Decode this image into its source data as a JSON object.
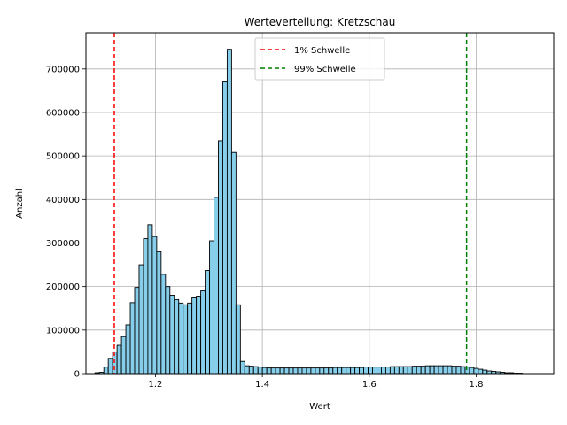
{
  "chart_data": {
    "type": "bar",
    "title": "Werteverteilung: Kretzschau",
    "xlabel": "Wert",
    "ylabel": "Anzahl",
    "xlim": [
      1.07,
      1.945
    ],
    "ylim": [
      0,
      783000
    ],
    "xticks": [
      1.2,
      1.4,
      1.6,
      1.8
    ],
    "xtick_labels": [
      "1.2",
      "1.4",
      "1.6",
      "1.8"
    ],
    "yticks": [
      0,
      100000,
      200000,
      300000,
      400000,
      500000,
      600000,
      700000
    ],
    "ytick_labels": [
      "0",
      "100000",
      "200000",
      "300000",
      "400000",
      "500000",
      "600000",
      "700000"
    ],
    "grid": true,
    "legend_position": "top-center",
    "bar_color": "#87ceeb",
    "bar_edge_color": "#000000",
    "bin_start": 1.087,
    "bin_width": 0.00824,
    "values": [
      2000,
      3000,
      15000,
      35000,
      50000,
      65000,
      85000,
      112000,
      163000,
      198000,
      250000,
      310000,
      342000,
      315000,
      280000,
      228000,
      200000,
      180000,
      170000,
      162000,
      158000,
      162000,
      176000,
      178000,
      190000,
      237000,
      305000,
      405000,
      535000,
      670000,
      745000,
      508000,
      158000,
      28000,
      18000,
      17000,
      16000,
      15000,
      14000,
      13000,
      13000,
      13000,
      13000,
      13000,
      13000,
      13000,
      13000,
      13000,
      13000,
      13000,
      13000,
      13000,
      13000,
      13000,
      14000,
      14000,
      14000,
      14000,
      14000,
      14000,
      14000,
      15000,
      15000,
      15000,
      15000,
      15000,
      15000,
      16000,
      16000,
      16000,
      16000,
      16000,
      17000,
      17000,
      17000,
      18000,
      18000,
      18000,
      18000,
      18000,
      18000,
      17000,
      17000,
      16000,
      15000,
      14000,
      12000,
      10000,
      8000,
      6000,
      5000,
      4000,
      3000,
      2000,
      2000,
      1000,
      1000
    ],
    "thresholds": [
      {
        "label": "1% Schwelle",
        "value": 1.123,
        "color": "#ff0000"
      },
      {
        "label": "99% Schwelle",
        "value": 1.782,
        "color": "#008000"
      }
    ]
  }
}
